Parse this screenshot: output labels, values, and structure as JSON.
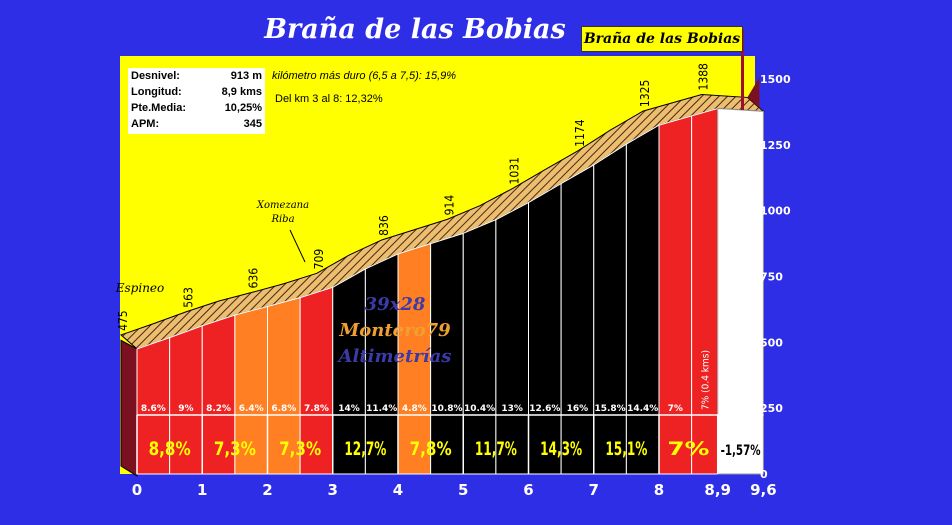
{
  "title": "Braña de las Bobias",
  "tag_label": "Braña de las Bobias",
  "stats": [
    {
      "label": "Desnivel:",
      "value": "913 m"
    },
    {
      "label": "Longitud:",
      "value": "8,9 kms"
    },
    {
      "label": "Pte.Media:",
      "value": "10,25%"
    },
    {
      "label": "APM:",
      "value": "345"
    }
  ],
  "note_hardest": "kilómetro más duro (6,5 a 7,5):  15,9%",
  "note_km3_8": "Del km 3 al 8:  12,32%",
  "watermark": [
    "39x28",
    "Montero79",
    "Altimetrías"
  ],
  "colors": {
    "background": "#2e2ee6",
    "sky": "#ffff00",
    "red": "#ee2222",
    "orange": "#ff7f22",
    "black": "#000000",
    "white": "#ffffff",
    "slope_side": "#7a1020",
    "hatch": "#e8c070",
    "axis_text": "#ffffff",
    "avg_text": "#ffff00",
    "watermark_1": "#3b3ba8",
    "watermark_2": "#f0a030",
    "watermark_3": "#3b3ba8"
  },
  "chart_data": {
    "type": "area",
    "x_ticks": [
      "0",
      "1",
      "2",
      "3",
      "4",
      "5",
      "6",
      "7",
      "8",
      "8,9",
      "9,6"
    ],
    "y_ticks": [
      "0",
      "250",
      "500",
      "750",
      "1000",
      "1250",
      "1500"
    ],
    "ylim": [
      0,
      1500
    ],
    "xlim": [
      0,
      9.6
    ],
    "profile": [
      {
        "km": 0,
        "alt": 475,
        "label": "475"
      },
      {
        "km": 0.5,
        "alt": 518
      },
      {
        "km": 1,
        "alt": 563,
        "label": "563"
      },
      {
        "km": 1.5,
        "alt": 604
      },
      {
        "km": 2,
        "alt": 636,
        "label": "636"
      },
      {
        "km": 2.5,
        "alt": 670
      },
      {
        "km": 3,
        "alt": 709,
        "label": "709"
      },
      {
        "km": 3.5,
        "alt": 779
      },
      {
        "km": 4,
        "alt": 836,
        "label": "836"
      },
      {
        "km": 4.5,
        "alt": 875
      },
      {
        "km": 5,
        "alt": 914,
        "label": "914"
      },
      {
        "km": 5.5,
        "alt": 966
      },
      {
        "km": 6,
        "alt": 1031,
        "label": "1031"
      },
      {
        "km": 6.5,
        "alt": 1103
      },
      {
        "km": 7,
        "alt": 1174,
        "label": "1174"
      },
      {
        "km": 7.5,
        "alt": 1253
      },
      {
        "km": 8,
        "alt": 1325,
        "label": "1325"
      },
      {
        "km": 8.5,
        "alt": 1360
      },
      {
        "km": 8.9,
        "alt": 1388,
        "label": "1388"
      },
      {
        "km": 9.6,
        "alt": 1377
      }
    ],
    "segments": [
      {
        "from": 0,
        "to": 0.5,
        "grade": "8.6%",
        "color": "red"
      },
      {
        "from": 0.5,
        "to": 1,
        "grade": "9%",
        "color": "red"
      },
      {
        "from": 1,
        "to": 1.5,
        "grade": "8.2%",
        "color": "red"
      },
      {
        "from": 1.5,
        "to": 2,
        "grade": "6.4%",
        "color": "orange"
      },
      {
        "from": 2,
        "to": 2.5,
        "grade": "6.8%",
        "color": "orange"
      },
      {
        "from": 2.5,
        "to": 3,
        "grade": "7.8%",
        "color": "red"
      },
      {
        "from": 3,
        "to": 3.5,
        "grade": "14%",
        "color": "black"
      },
      {
        "from": 3.5,
        "to": 4,
        "grade": "11.4%",
        "color": "black"
      },
      {
        "from": 4,
        "to": 4.5,
        "grade": "4.8%",
        "color": "orange"
      },
      {
        "from": 4.5,
        "to": 5,
        "grade": "10.8%",
        "color": "black"
      },
      {
        "from": 5,
        "to": 5.5,
        "grade": "10.4%",
        "color": "black"
      },
      {
        "from": 5.5,
        "to": 6,
        "grade": "13%",
        "color": "black"
      },
      {
        "from": 6,
        "to": 6.5,
        "grade": "12.6%",
        "color": "black"
      },
      {
        "from": 6.5,
        "to": 7,
        "grade": "16%",
        "color": "black"
      },
      {
        "from": 7,
        "to": 7.5,
        "grade": "15.8%",
        "color": "black"
      },
      {
        "from": 7.5,
        "to": 8,
        "grade": "14.4%",
        "color": "black"
      },
      {
        "from": 8,
        "to": 8.5,
        "grade": "7%",
        "color": "red"
      },
      {
        "from": 8.5,
        "to": 8.9,
        "grade": "7% (0.4 kms)",
        "color": "red",
        "vertical": true
      },
      {
        "from": 8.9,
        "to": 9.6,
        "grade": "",
        "color": "white"
      }
    ],
    "km_averages": [
      {
        "from": 0,
        "to": 1,
        "label": "8,8%",
        "color": "red"
      },
      {
        "from": 1,
        "to": 2,
        "label": "7,3%",
        "color": "red"
      },
      {
        "from": 2,
        "to": 3,
        "label": "7,3%",
        "color": "red"
      },
      {
        "from": 3,
        "to": 4,
        "label": "12,7%",
        "color": "black"
      },
      {
        "from": 4,
        "to": 5,
        "label": "7,8%",
        "color": "red"
      },
      {
        "from": 5,
        "to": 6,
        "label": "11,7%",
        "color": "black"
      },
      {
        "from": 6,
        "to": 7,
        "label": "14,3%",
        "color": "black"
      },
      {
        "from": 7,
        "to": 8,
        "label": "15,1%",
        "color": "black"
      },
      {
        "from": 8,
        "to": 8.9,
        "label": "7%",
        "color": "red"
      },
      {
        "from": 8.9,
        "to": 9.6,
        "label": "-1,57%",
        "color": "white"
      }
    ],
    "places": [
      {
        "km": 0,
        "name": "Espineo"
      },
      {
        "km": 2.5,
        "name": "Xomezana Riba"
      }
    ]
  }
}
